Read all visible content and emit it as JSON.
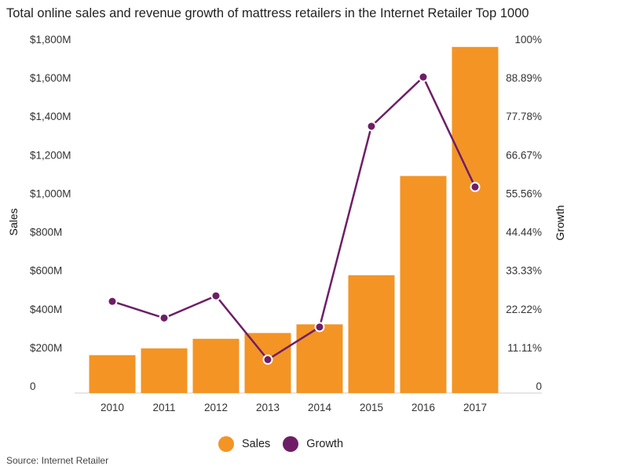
{
  "title": "Total online sales and revenue growth of mattress retailers in the Internet Retailer Top 1000",
  "source": "Source: Internet Retailer",
  "colors": {
    "sales": "#F39425",
    "growth": "#6E1E66"
  },
  "legend": {
    "sales_label": "Sales",
    "growth_label": "Growth"
  },
  "chart_data": {
    "type": "bar",
    "categories": [
      "2010",
      "2011",
      "2012",
      "2013",
      "2014",
      "2015",
      "2016",
      "2017"
    ],
    "series": [
      {
        "name": "Sales",
        "type": "bar",
        "axis": "left",
        "values": [
          160,
          195,
          245,
          275,
          320,
          575,
          1090,
          1760
        ]
      },
      {
        "name": "Growth",
        "type": "line",
        "axis": "right",
        "values": [
          24.4,
          19.6,
          26.0,
          7.6,
          17.0,
          74.9,
          89.1,
          57.4
        ]
      }
    ],
    "ylabel": "Sales",
    "y2label": "Growth",
    "ylim": [
      0,
      1800
    ],
    "y2lim": [
      0,
      100
    ],
    "yticks": [
      "0",
      "$200M",
      "$400M",
      "$600M",
      "$800M",
      "$1,000M",
      "$1,200M",
      "$1,400M",
      "$1,600M",
      "$1,800M"
    ],
    "y2ticks": [
      "0",
      "11.11%",
      "22.22%",
      "33.33%",
      "44.44%",
      "55.56%",
      "66.67%",
      "77.78%",
      "88.89%",
      "100%"
    ],
    "grid": false,
    "legend_position": "bottom-center"
  }
}
